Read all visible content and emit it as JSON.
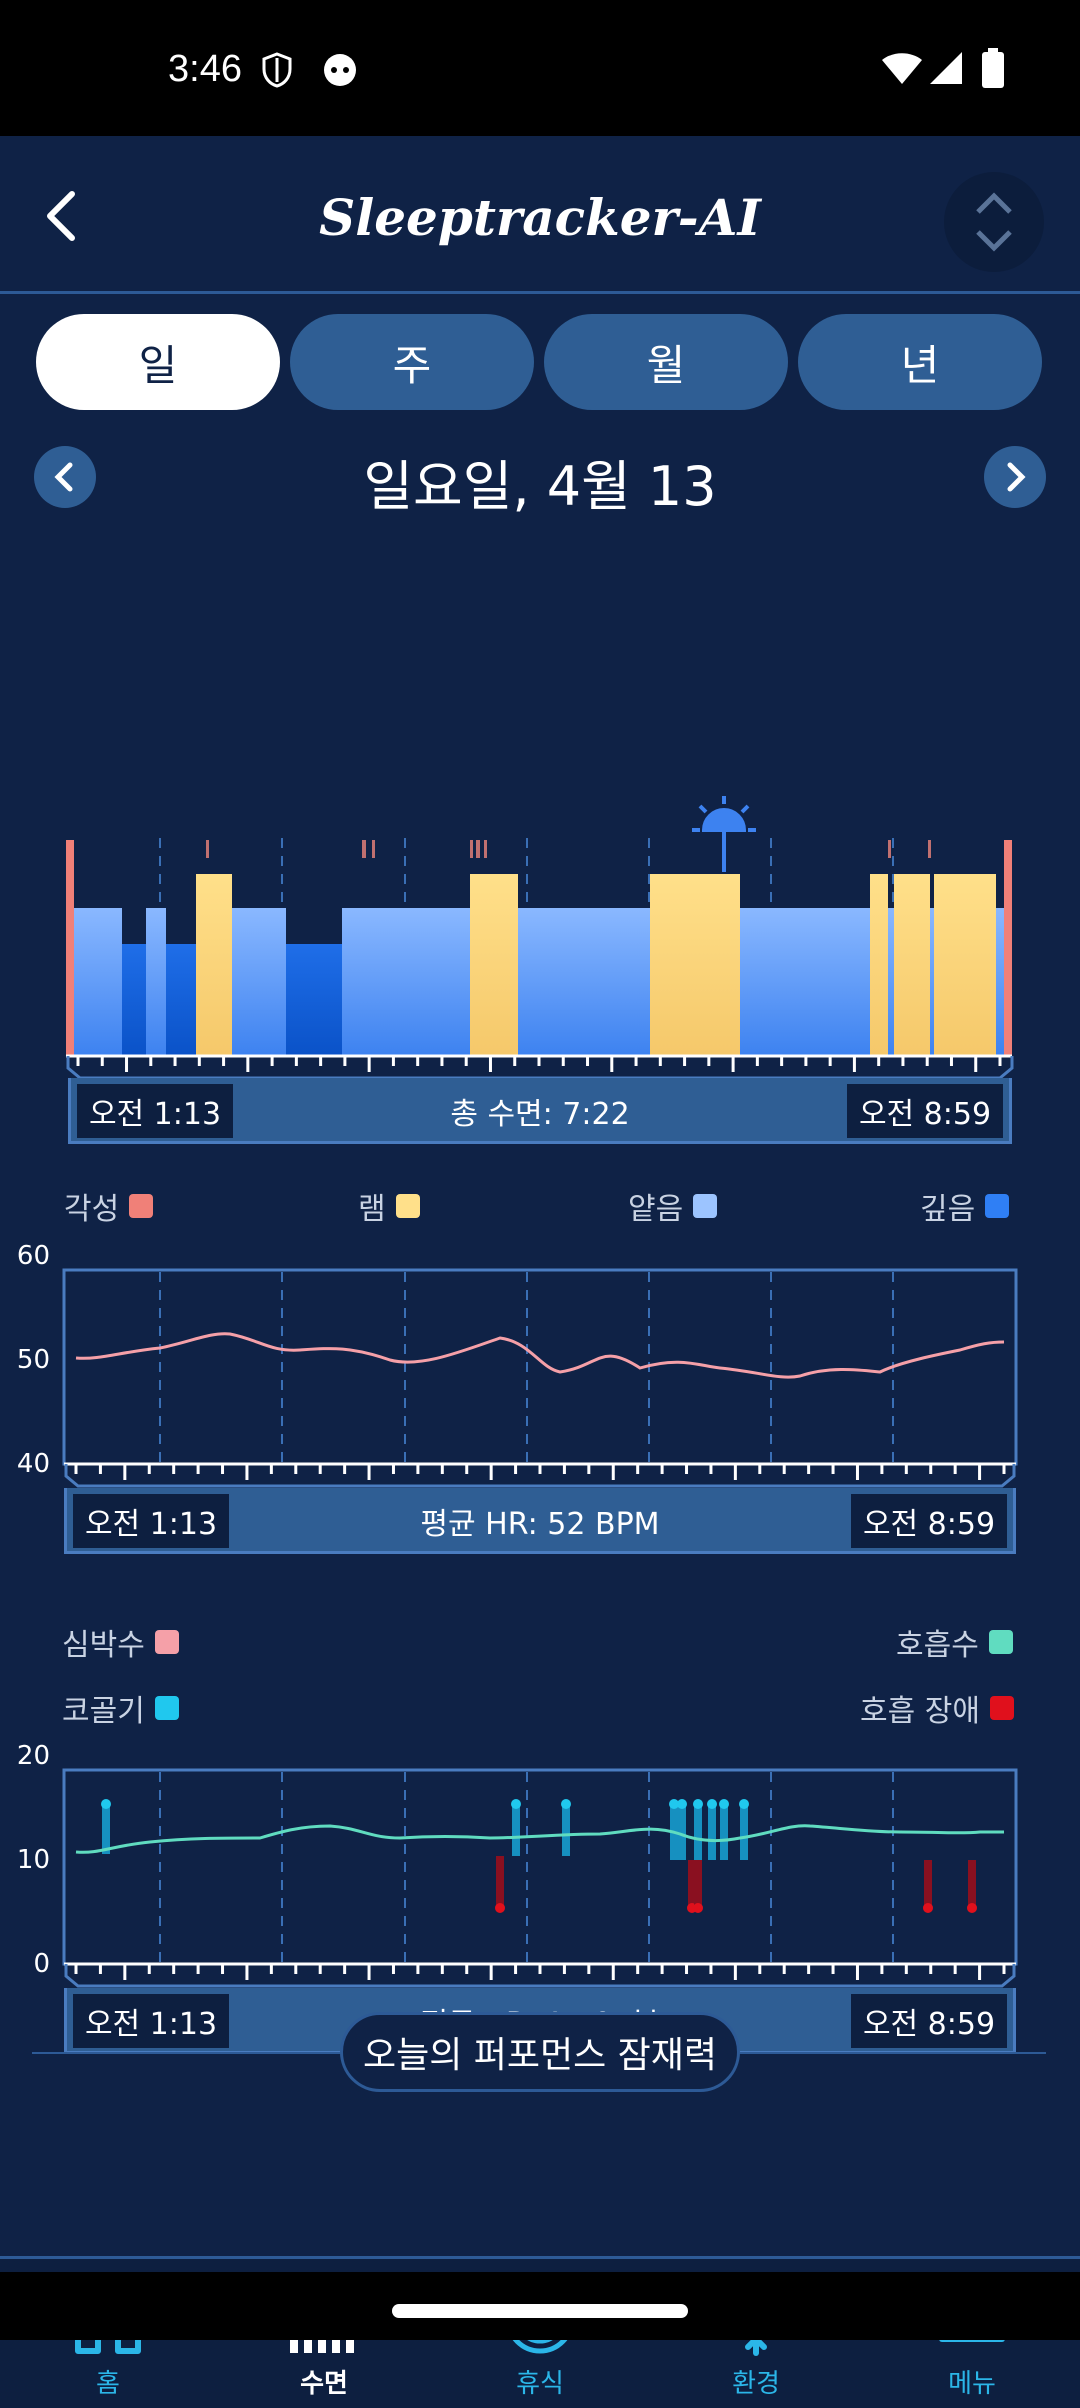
{
  "status_bar": {
    "time": "3:46"
  },
  "header": {
    "logo": "Sleeptracker-AI"
  },
  "tabs": [
    {
      "label": "일",
      "active": true
    },
    {
      "label": "주"
    },
    {
      "label": "월"
    },
    {
      "label": "년"
    }
  ],
  "date": "일요일, 4월 13",
  "hypnogram": {
    "start": "오전 1:13",
    "end": "오전 8:59",
    "summary": "총 수면: 7:22",
    "legend": [
      {
        "label": "각성",
        "color": "#f08078"
      },
      {
        "label": "램",
        "color": "#ffe08a"
      },
      {
        "label": "얕음",
        "color": "#9cc4ff"
      },
      {
        "label": "깊음",
        "color": "#2f7ff5"
      }
    ]
  },
  "heart_chart": {
    "start": "오전 1:13",
    "end": "오전 8:59",
    "summary": "평균 HR: 52 BPM",
    "y_ticks": [
      "60",
      "50",
      "40"
    ],
    "legend_left": {
      "label": "심박수",
      "color": "#f5a0a8"
    },
    "legend_right": {
      "label": "호흡수",
      "color": "#60dcc0"
    },
    "legend_left2": {
      "label": "코골기",
      "color": "#20c8ee"
    },
    "legend_right2": {
      "label": "호흡 장애",
      "color": "#e0101c"
    }
  },
  "breath_chart": {
    "start": "오전 1:13",
    "end": "오전 8:59",
    "summary": "평균 BR: 14.0 /분",
    "y_ticks": [
      "20",
      "10",
      "0"
    ]
  },
  "performance_button": "오늘의 퍼포먼스 잠재력",
  "bottom_nav": [
    {
      "label": "홈",
      "icon": "home-icon"
    },
    {
      "label": "수면",
      "icon": "chart-icon",
      "active": true
    },
    {
      "label": "휴식",
      "icon": "target-icon"
    },
    {
      "label": "환경",
      "icon": "snowflake-icon"
    },
    {
      "label": "메뉴",
      "icon": "menu-icon"
    }
  ]
}
